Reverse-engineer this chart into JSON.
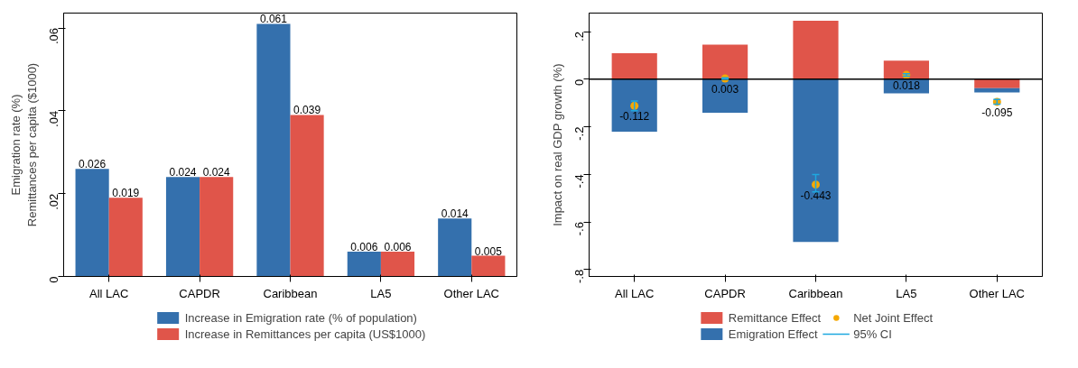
{
  "chart_data": [
    {
      "type": "bar",
      "ylabel": "Emigration rate (%)\nRemittances per capita ($1000)",
      "categories": [
        "All LAC",
        "CAPDR",
        "Caribbean",
        "LA5",
        "Other LAC"
      ],
      "series": [
        {
          "name": "Increase in Emigration rate (% of population)",
          "color": "#3470ad",
          "values": [
            0.026,
            0.024,
            0.061,
            0.006,
            0.014
          ]
        },
        {
          "name": "Increase in Remittances per capita (US$1000)",
          "color": "#e0554a",
          "values": [
            0.019,
            0.024,
            0.039,
            0.006,
            0.005
          ]
        }
      ],
      "ylim": [
        0,
        0.0636
      ],
      "yticks": [
        {
          "value": 0,
          "label": "0"
        },
        {
          "value": 0.02,
          "label": ".02"
        },
        {
          "value": 0.04,
          "label": ".04"
        },
        {
          "value": 0.06,
          "label": ".06"
        }
      ],
      "data_labels": true,
      "grid": false,
      "legend": "bottom"
    },
    {
      "type": "bar",
      "ylabel": "Impact on real GDP growth (%)",
      "categories": [
        "All LAC",
        "CAPDR",
        "Caribbean",
        "LA5",
        "Other LAC"
      ],
      "stacked": true,
      "series": [
        {
          "name": "Remittance Effect",
          "color": "#e0554a",
          "values": [
            0.109,
            0.145,
            0.246,
            0.078,
            -0.038
          ]
        },
        {
          "name": "Emigration Effect",
          "color": "#3470ad",
          "values": [
            -0.221,
            -0.141,
            -0.684,
            -0.059,
            -0.018
          ]
        },
        {
          "name": "Net Joint Effect",
          "type": "scatter",
          "color": "#f5a800",
          "marker": "circle",
          "x": [
            "All LAC",
            "CAPDR",
            "Caribbean",
            "LA5",
            "Other LAC"
          ],
          "values": [
            -0.112,
            0.003,
            -0.443,
            0.018,
            -0.095
          ],
          "value_labels": [
            "-0.112",
            "0.003",
            "-0.443",
            "0.018",
            "-0.095"
          ],
          "errors": [
            [
              -0.132,
              -0.092
            ],
            [
              0.0,
              0.006
            ],
            [
              -0.474,
              -0.401
            ],
            [
              0.013,
              0.023
            ],
            [
              -0.105,
              -0.085
            ]
          ]
        }
      ],
      "ylim": [
        -0.829,
        0.278
      ],
      "yticks": [
        {
          "value": -0.8,
          "label": "-.8"
        },
        {
          "value": -0.6,
          "label": "-.6"
        },
        {
          "value": -0.4,
          "label": "-.4"
        },
        {
          "value": -0.2,
          "label": "-.2"
        },
        {
          "value": 0,
          "label": "0"
        },
        {
          "value": 0.2,
          "label": ".2"
        }
      ],
      "ref_lines": [
        {
          "axis": "y",
          "value": 0,
          "color": "#000000"
        }
      ],
      "annotations": [
        "95% CI"
      ],
      "grid": false,
      "legend": "bottom"
    }
  ]
}
